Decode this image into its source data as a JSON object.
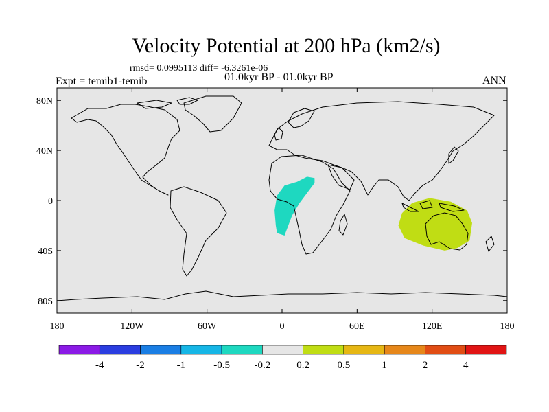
{
  "title": "Velocity Potential at 200 hPa (km2/s)",
  "stats": "rmsd= 0.0995113 diff= -6.3261e-06",
  "experiment": "Expt = temib1-temib",
  "period": "01.0kyr BP - 01.0kyr BP",
  "season": "ANN",
  "map": {
    "projection": "cylindrical-equidistant",
    "lon_range": [
      -180,
      180
    ],
    "lat_range": [
      -90,
      90
    ],
    "ocean_color": "#e6e6e6",
    "coastline_color": "#000000",
    "lat_ticks": [
      {
        "value": 80,
        "label": "80N"
      },
      {
        "value": 40,
        "label": "40N"
      },
      {
        "value": 0,
        "label": "0"
      },
      {
        "value": -40,
        "label": "40S"
      },
      {
        "value": -80,
        "label": "80S"
      }
    ],
    "lon_ticks": [
      {
        "value": -180,
        "label": "180"
      },
      {
        "value": -120,
        "label": "120W"
      },
      {
        "value": -60,
        "label": "60W"
      },
      {
        "value": 0,
        "label": "0"
      },
      {
        "value": 60,
        "label": "60E"
      },
      {
        "value": 120,
        "label": "120E"
      },
      {
        "value": 180,
        "label": "180"
      }
    ],
    "anomaly_regions": [
      {
        "name": "central-africa-negative",
        "bin": "-0.5 to -0.2",
        "color": "#1ed8c0",
        "outline": [
          [
            -5,
            -20
          ],
          [
            -6,
            -8
          ],
          [
            -4,
            4
          ],
          [
            2,
            12
          ],
          [
            12,
            15
          ],
          [
            20,
            19
          ],
          [
            26,
            18
          ],
          [
            26,
            14
          ],
          [
            20,
            6
          ],
          [
            14,
            -2
          ],
          [
            8,
            -12
          ],
          [
            5,
            -20
          ],
          [
            2,
            -28
          ],
          [
            -4,
            -26
          ]
        ]
      },
      {
        "name": "australia-positive",
        "bin": "0.2 to 0.5",
        "color": "#c0dd14",
        "outline": [
          [
            93,
            -20
          ],
          [
            96,
            -10
          ],
          [
            104,
            -2
          ],
          [
            118,
            2
          ],
          [
            135,
            -1
          ],
          [
            148,
            -8
          ],
          [
            152,
            -18
          ],
          [
            150,
            -32
          ],
          [
            140,
            -38
          ],
          [
            130,
            -40
          ],
          [
            113,
            -36
          ],
          [
            98,
            -30
          ]
        ]
      }
    ]
  },
  "colorbar": {
    "colors": [
      "#8b1ae6",
      "#2a3de0",
      "#1a7ee4",
      "#16b6e6",
      "#1ed8c0",
      "#e6e6e6",
      "#c0dd14",
      "#e6b714",
      "#e6871a",
      "#e14d14",
      "#e11414"
    ],
    "labels": [
      "-4",
      "-2",
      "-1",
      "-0.5",
      "-0.2",
      "0.2",
      "0.5",
      "1",
      "2",
      "4"
    ]
  }
}
